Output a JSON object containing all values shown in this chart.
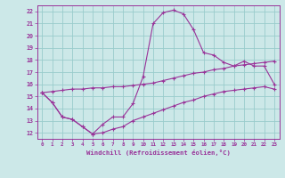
{
  "xlabel": "Windchill (Refroidissement éolien,°C)",
  "bg_color": "#cce8e8",
  "grid_color": "#99cccc",
  "line_color": "#993399",
  "hours": [
    0,
    1,
    2,
    3,
    4,
    5,
    6,
    7,
    8,
    9,
    10,
    11,
    12,
    13,
    14,
    15,
    16,
    17,
    18,
    19,
    20,
    21,
    22,
    23
  ],
  "line_temp": [
    15.3,
    14.5,
    13.3,
    13.1,
    12.5,
    11.9,
    12.7,
    13.3,
    13.3,
    14.4,
    16.6,
    21.0,
    21.9,
    22.1,
    21.8,
    20.5,
    18.6,
    18.4,
    17.8,
    17.5,
    17.9,
    17.5,
    17.5,
    16.0
  ],
  "line_max": [
    15.3,
    15.4,
    15.5,
    15.6,
    15.6,
    15.7,
    15.7,
    15.8,
    15.8,
    15.9,
    16.0,
    16.1,
    16.3,
    16.5,
    16.7,
    16.9,
    17.0,
    17.2,
    17.3,
    17.5,
    17.6,
    17.7,
    17.8,
    17.9
  ],
  "line_min": [
    15.3,
    14.5,
    13.3,
    13.1,
    12.5,
    11.9,
    12.0,
    12.3,
    12.5,
    13.0,
    13.3,
    13.6,
    13.9,
    14.2,
    14.5,
    14.7,
    15.0,
    15.2,
    15.4,
    15.5,
    15.6,
    15.7,
    15.8,
    15.6
  ],
  "ylim": [
    11.5,
    22.5
  ],
  "xlim": [
    -0.5,
    23.5
  ],
  "yticks": [
    12,
    13,
    14,
    15,
    16,
    17,
    18,
    19,
    20,
    21,
    22
  ]
}
